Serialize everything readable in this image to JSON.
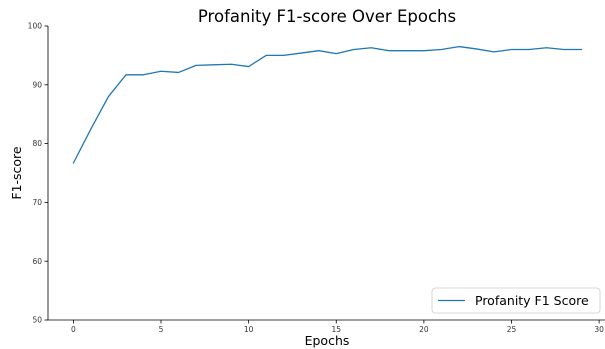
{
  "chart_data": {
    "type": "line",
    "title": "Profanity F1-score Over Epochs",
    "xlabel": "Epochs",
    "ylabel": "F1-score",
    "xlim": [
      -1.45,
      30.45
    ],
    "ylim": [
      50,
      100
    ],
    "xticks": [
      0,
      5,
      10,
      15,
      20,
      25,
      30
    ],
    "yticks": [
      50,
      60,
      70,
      80,
      90,
      100
    ],
    "grid": false,
    "legend_position": "bottom-right",
    "series": [
      {
        "name": "Profanity F1 Score",
        "color": "#1f77b4",
        "x": [
          0,
          1,
          2,
          3,
          4,
          5,
          6,
          7,
          8,
          9,
          10,
          11,
          12,
          13,
          14,
          15,
          16,
          17,
          18,
          19,
          20,
          21,
          22,
          23,
          24,
          25,
          26,
          27,
          28,
          29
        ],
        "y": [
          76.7,
          82.5,
          88.0,
          91.7,
          91.7,
          92.3,
          92.1,
          93.3,
          93.4,
          93.5,
          93.1,
          95.0,
          95.0,
          95.4,
          95.8,
          95.3,
          96.0,
          96.3,
          95.8,
          95.8,
          95.8,
          96.0,
          96.5,
          96.1,
          95.6,
          96.0,
          96.0,
          96.3,
          96.0,
          96.0
        ]
      }
    ]
  }
}
